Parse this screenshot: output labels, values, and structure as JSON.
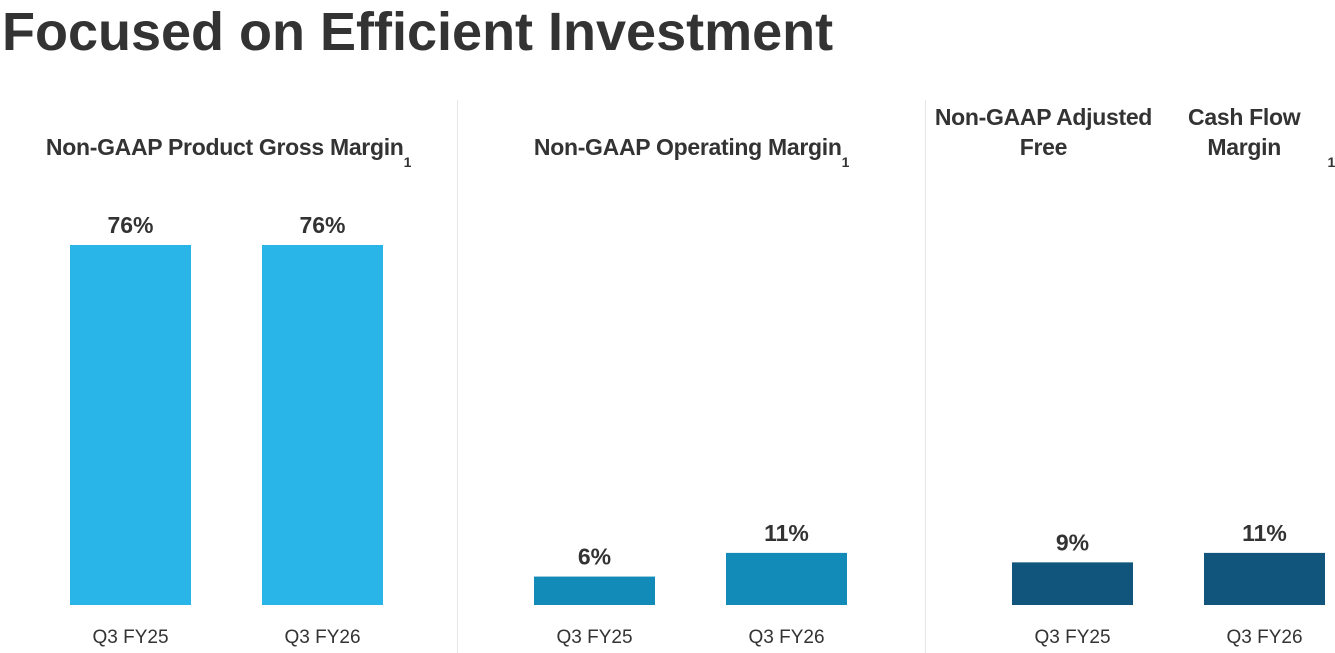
{
  "page": {
    "title": "Focused on Efficient Investment"
  },
  "chart_data": [
    {
      "type": "bar",
      "title": "Non-GAAP Product Gross Margin",
      "title_lines": [
        "Non-GAAP Product Gross Margin"
      ],
      "footnote_marker": "1",
      "categories": [
        "Q3 FY25",
        "Q3 FY26"
      ],
      "values": [
        76,
        76
      ],
      "value_labels": [
        "76%",
        "76%"
      ],
      "unit": "%",
      "color": "#29b5e8"
    },
    {
      "type": "bar",
      "title": "Non-GAAP Operating Margin",
      "title_lines": [
        "Non-GAAP Operating Margin"
      ],
      "footnote_marker": "1",
      "categories": [
        "Q3 FY25",
        "Q3 FY26"
      ],
      "values": [
        6,
        11
      ],
      "value_labels": [
        "6%",
        "11%"
      ],
      "unit": "%",
      "color": "#138bb8"
    },
    {
      "type": "bar",
      "title": "Non-GAAP Adjusted Free Cash Flow Margin",
      "title_lines": [
        "Non-GAAP Adjusted Free",
        "Cash Flow Margin"
      ],
      "footnote_marker": "1",
      "categories": [
        "Q3 FY25",
        "Q3 FY26"
      ],
      "values": [
        9,
        11
      ],
      "value_labels": [
        "9%",
        "11%"
      ],
      "unit": "%",
      "color": "#11557c"
    }
  ]
}
